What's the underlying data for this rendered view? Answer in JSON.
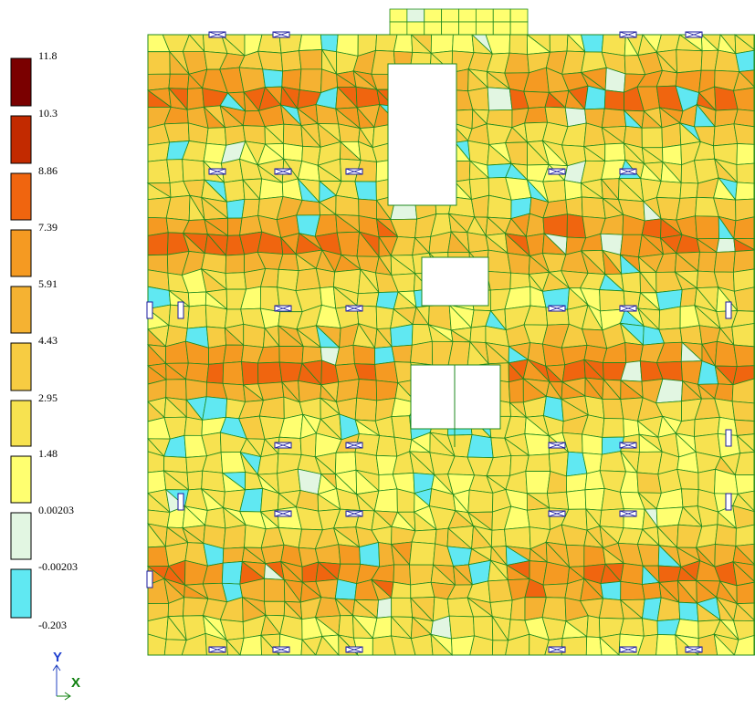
{
  "legend": {
    "labels": [
      "11.8",
      "10.3",
      "8.86",
      "7.39",
      "5.91",
      "4.43",
      "2.95",
      "1.48",
      "0.00203",
      "-0.00203",
      "-0.203"
    ],
    "colors": [
      "#7a0000",
      "#c22a00",
      "#f0650f",
      "#f59a22",
      "#f5b232",
      "#f7cc42",
      "#f7e250",
      "#ffff70",
      "#e2f6e2",
      "#60e8f2"
    ]
  },
  "axes": {
    "y": "Y",
    "x": "X"
  }
}
